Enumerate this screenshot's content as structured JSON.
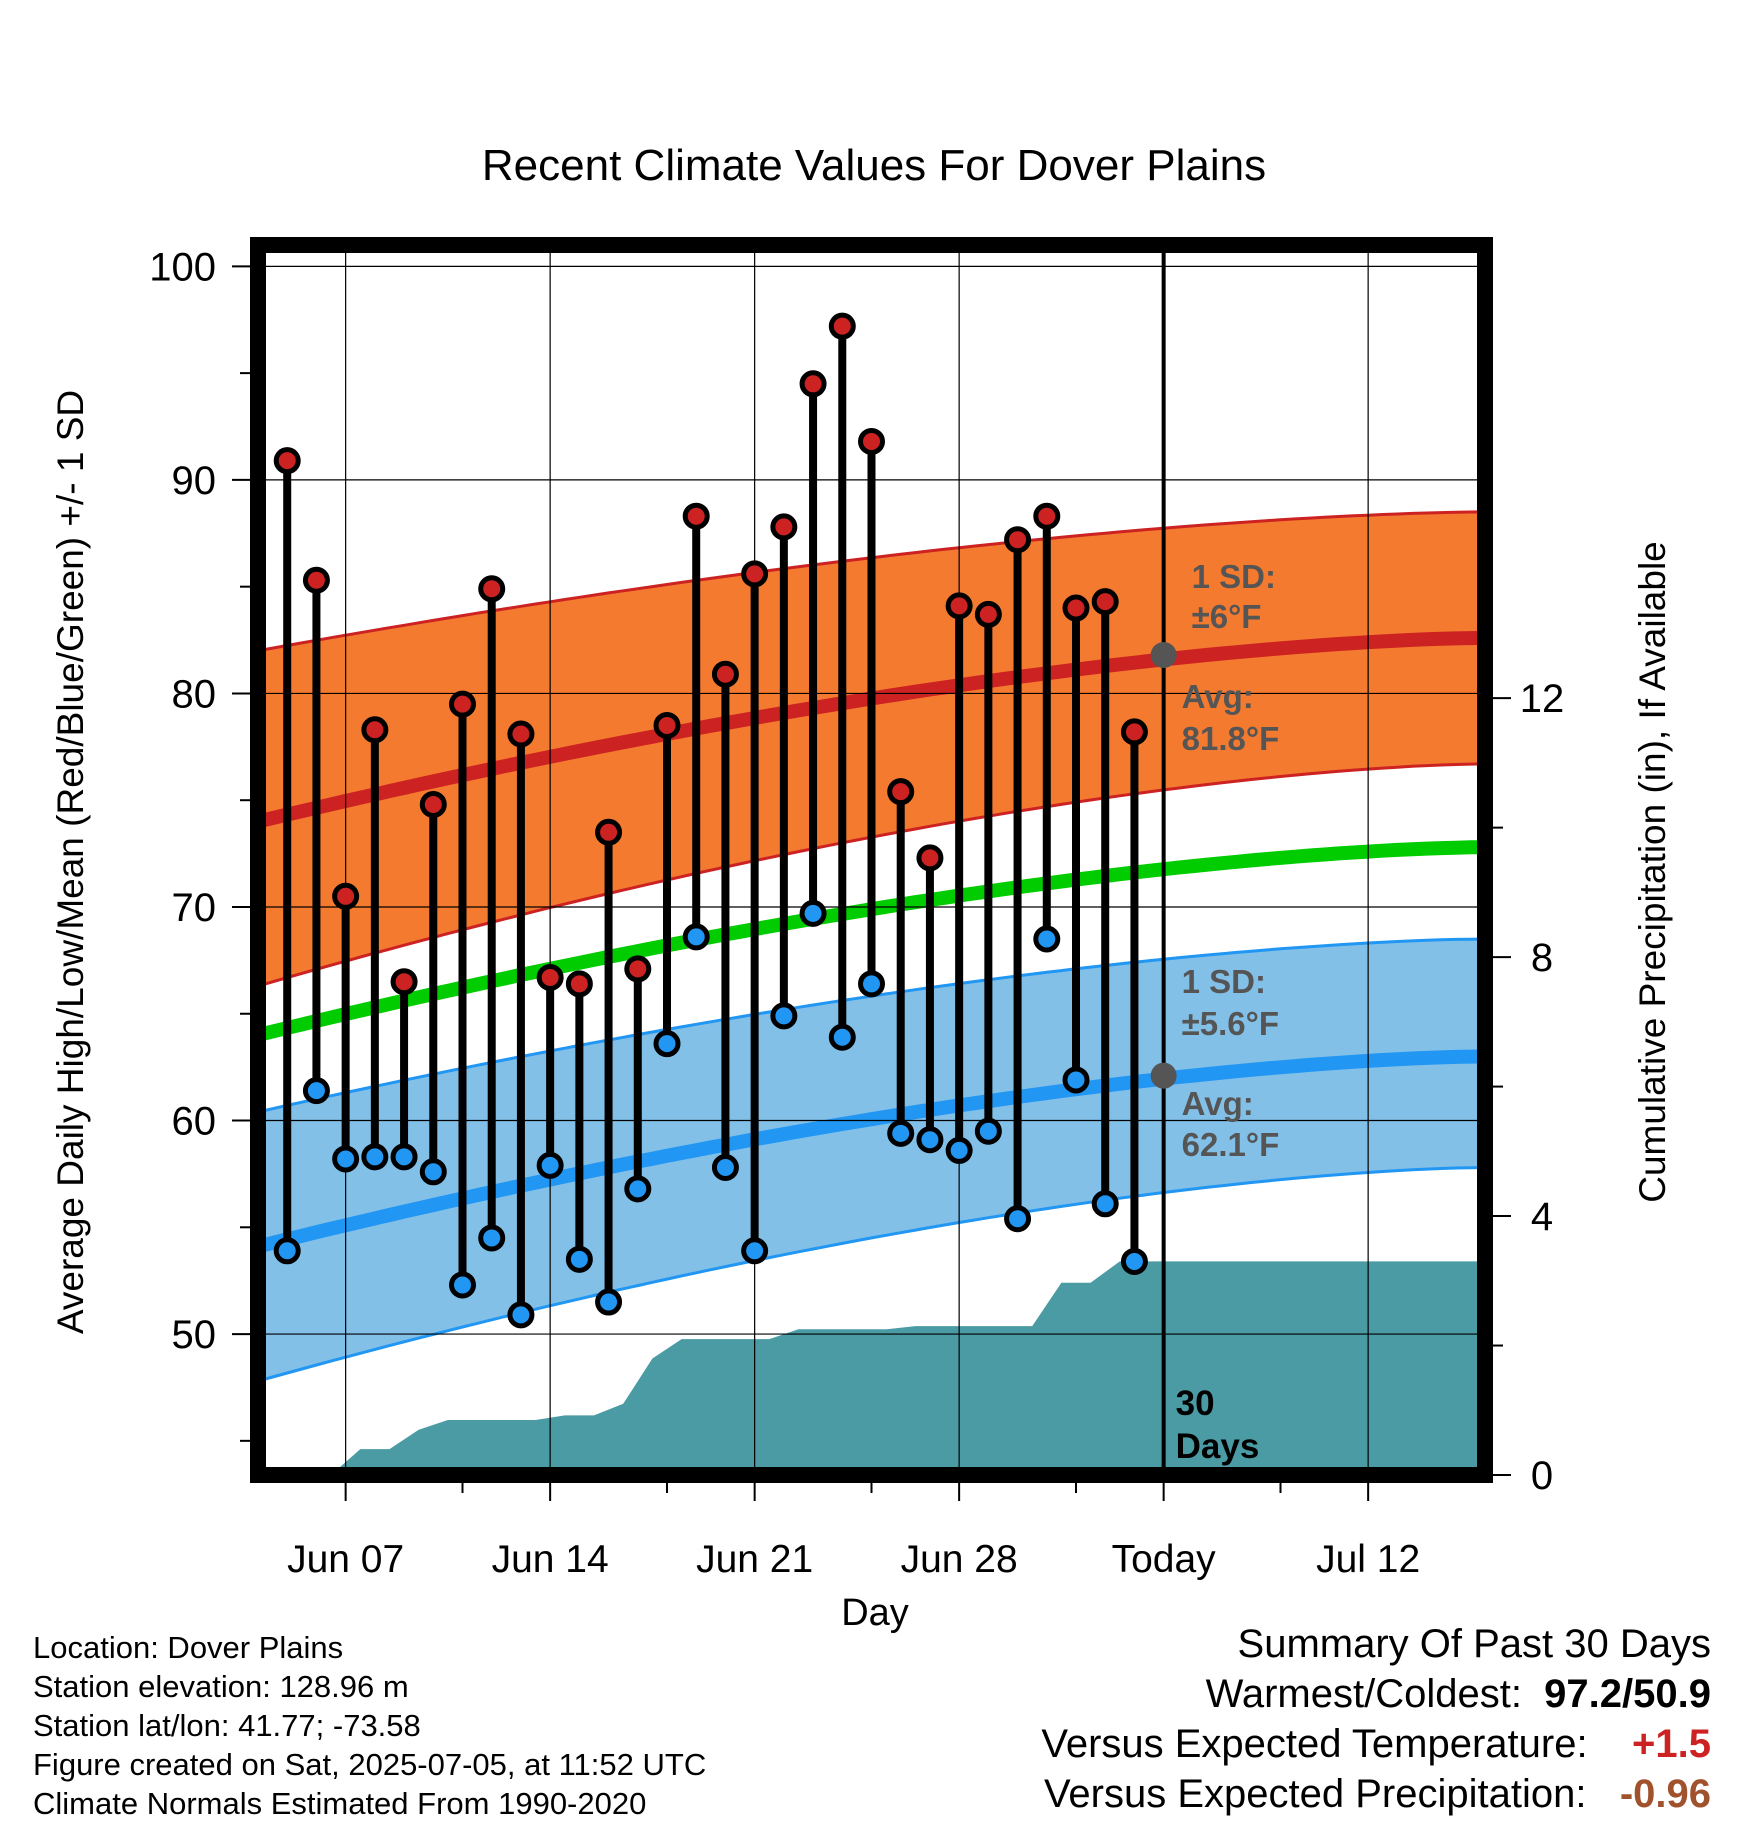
{
  "chart_data": {
    "type": "line",
    "title": "Recent Climate Values For Dover Plains",
    "xlabel": "Day",
    "ylabel": "Average Daily High/Low/Mean (Red/Blue/Green) +/- 1 SD",
    "y2label": "Cumulative Precipitation (in), If Available",
    "ylim": [
      43.4,
      101
    ],
    "y2lim": [
      0,
      19
    ],
    "y_ticks": [
      50,
      60,
      70,
      80,
      90,
      100
    ],
    "y2_ticks": [
      0,
      4,
      8,
      12
    ],
    "x_ticks": [
      "Jun 07",
      "Jun 14",
      "Jun 21",
      "Jun 28",
      "Today",
      "Jul 12"
    ],
    "grid": true,
    "start_day_label": "Jun 04",
    "today_marker_label": "30 Days",
    "days": [
      "Jun 05",
      "Jun 06",
      "Jun 07",
      "Jun 08",
      "Jun 09",
      "Jun 10",
      "Jun 11",
      "Jun 12",
      "Jun 13",
      "Jun 14",
      "Jun 15",
      "Jun 16",
      "Jun 17",
      "Jun 18",
      "Jun 19",
      "Jun 20",
      "Jun 21",
      "Jun 22",
      "Jun 23",
      "Jun 24",
      "Jun 25",
      "Jun 26",
      "Jun 27",
      "Jun 28",
      "Jun 29",
      "Jun 30",
      "Jul 01",
      "Jul 02",
      "Jul 03",
      "Jul 04"
    ],
    "series": [
      {
        "name": "Daily High",
        "color": "#cc2222",
        "values": [
          90.9,
          85.3,
          70.5,
          78.3,
          66.5,
          74.8,
          79.5,
          84.9,
          78.1,
          66.7,
          66.4,
          73.5,
          67.1,
          78.5,
          88.3,
          80.9,
          85.6,
          87.8,
          94.5,
          97.2,
          91.8,
          75.4,
          72.3,
          84.1,
          83.7,
          87.2,
          88.3,
          84.0,
          84.3,
          78.2
        ]
      },
      {
        "name": "Daily Low",
        "color": "#2196f3",
        "values": [
          53.9,
          61.4,
          58.2,
          58.3,
          58.3,
          57.6,
          52.3,
          54.5,
          50.9,
          57.9,
          53.5,
          51.5,
          56.8,
          63.6,
          68.6,
          57.8,
          53.9,
          64.9,
          69.7,
          63.9,
          66.4,
          59.4,
          59.1,
          58.6,
          59.5,
          55.4,
          68.5,
          61.9,
          56.1,
          53.4
        ]
      }
    ],
    "normals": {
      "high_avg": {
        "start": 74.0,
        "end": 82.6,
        "color": "#cc2222"
      },
      "high_sd_band": {
        "start_lower": 66.3,
        "start_upper": 82.0,
        "end_lower": 76.7,
        "end_upper": 88.5,
        "color": "#f47a30"
      },
      "mean_avg": {
        "start": 64.0,
        "end": 72.8,
        "color": "#00cc00"
      },
      "low_avg": {
        "start": 54.1,
        "end": 63.0,
        "color": "#2196f3"
      },
      "low_sd_band": {
        "start_lower": 47.8,
        "start_upper": 60.4,
        "end_lower": 57.8,
        "end_upper": 68.5,
        "color": "#82c0e8"
      }
    },
    "precipitation": {
      "color": "#4b9ba5",
      "cumulative": [
        0.0,
        0.0,
        0.0,
        0.4,
        0.4,
        0.7,
        0.85,
        0.85,
        0.85,
        0.85,
        0.92,
        0.92,
        1.1,
        1.8,
        2.1,
        2.1,
        2.1,
        2.1,
        2.25,
        2.25,
        2.25,
        2.25,
        2.3,
        2.3,
        2.3,
        2.3,
        2.3,
        2.97,
        2.97,
        3.3,
        3.3
      ],
      "end_value": 3.3
    },
    "annotations": {
      "high_sd": "1 SD:",
      "high_sd_value": "±6°F",
      "high_avg": "Avg:",
      "high_avg_value": "81.8°F",
      "low_sd": "1 SD:",
      "low_sd_value": "±5.6°F",
      "low_avg": "Avg:",
      "low_avg_value": "62.1°F",
      "today_high": 81.8,
      "today_low": 62.1,
      "text_color": "#555555",
      "today_dot_color": "#555555"
    }
  },
  "info": {
    "location": "Location: Dover Plains",
    "elevation": "Station elevation: 128.96 m",
    "latlon": "Station lat/lon: 41.77; -73.58",
    "created": "Figure created on Sat, 2025-07-05, at 11:52 UTC",
    "normals": "Climate Normals Estimated From 1990-2020"
  },
  "summary": {
    "title": "Summary Of Past 30 Days",
    "warm_cold_label": "Warmest/Coldest:",
    "warm_cold_value": "97.2/50.9",
    "temp_label": "Versus Expected Temperature:",
    "temp_value": "+1.5",
    "temp_color": "#cc2222",
    "precip_label": "Versus Expected Precipitation:",
    "precip_value": "-0.96",
    "precip_color": "#a0522d"
  }
}
